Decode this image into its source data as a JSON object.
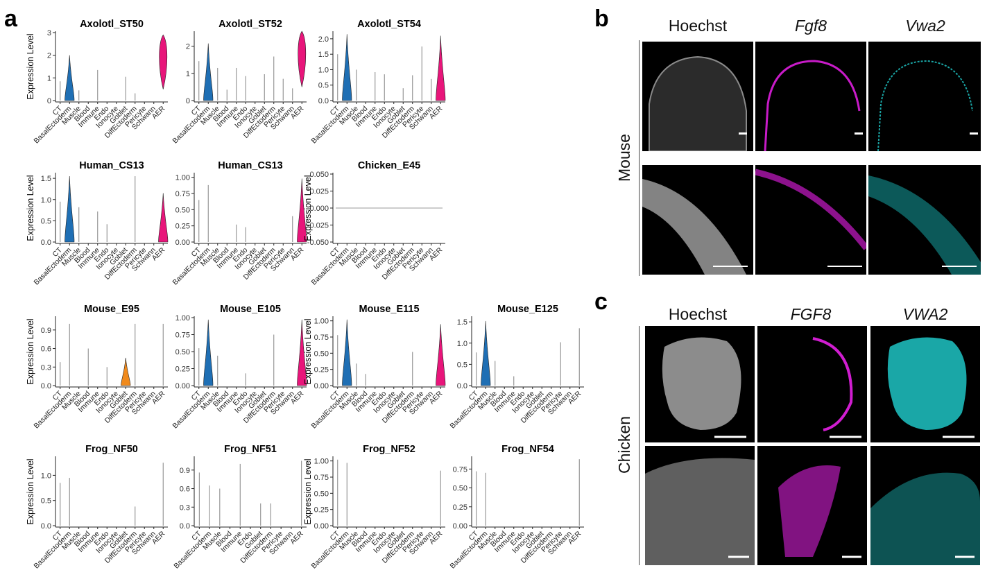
{
  "panel_labels": {
    "a": "a",
    "b": "b",
    "c": "c"
  },
  "colors": {
    "CT": "#ed8b8b",
    "BasalEctoderm": "#1f6fb4",
    "Muscle": "#8e8e8e",
    "Blood": "#8e8e8e",
    "Immune": "#8e8e8e",
    "Endo": "#8e8e8e",
    "Ionocyte": "#8e8e8e",
    "Goblet": "#f08a1c",
    "DiffEctoderm": "#8e8e8e",
    "Pericyte": "#8e8e8e",
    "Schwann": "#8e8e8e",
    "AER": "#e8157a",
    "hoechst": "#d9d9d9",
    "fgf8": "#d81fd8",
    "vwa2": "#16c8c8"
  },
  "chart_data": [
    {
      "type": "violin",
      "title": "Axolotl_ST50",
      "ylabel": "Expression Level",
      "ylim": [
        0,
        3
      ],
      "yticks": [
        0,
        1,
        2,
        3
      ],
      "yticklabels": [
        "0",
        "1",
        "2",
        "3"
      ],
      "categories": [
        "CT",
        "BasalEctoderm",
        "Muscle",
        "Blood",
        "Immune",
        "Endo",
        "Ionocyte",
        "Goblet",
        "DiffEctoderm",
        "Pericyte",
        "Schwann",
        "AER"
      ],
      "max": [
        0.85,
        2.0,
        0.45,
        0,
        1.35,
        0,
        0,
        1.05,
        0.32,
        0,
        0,
        2.9
      ],
      "violin": [
        "BasalEctoderm",
        "AER"
      ],
      "min": {
        "AER": 0.5
      }
    },
    {
      "type": "violin",
      "title": "Axolotl_ST52",
      "ylabel": "",
      "ylim": [
        0,
        2.5
      ],
      "yticks": [
        0,
        1,
        2
      ],
      "yticklabels": [
        "0",
        "1",
        "2"
      ],
      "categories": [
        "CT",
        "BasalEctoderm",
        "Muscle",
        "Blood",
        "Immune",
        "Endo",
        "Ionocyte",
        "Goblet",
        "DiffEctoderm",
        "Pericyte",
        "Schwann",
        "AER"
      ],
      "max": [
        1.45,
        2.1,
        1.2,
        0.4,
        1.2,
        0.9,
        0,
        0.97,
        1.62,
        0.8,
        0.45,
        2.55
      ],
      "violin": [
        "BasalEctoderm",
        "AER"
      ],
      "min": {
        "AER": 0.5
      }
    },
    {
      "type": "violin",
      "title": "Axolotl_ST54",
      "ylabel": "",
      "ylim": [
        0,
        2.2
      ],
      "yticks": [
        0,
        0.5,
        1.0,
        1.5,
        2.0
      ],
      "yticklabels": [
        "0.0",
        "0.5",
        "1.0",
        "1.5",
        "2.0"
      ],
      "categories": [
        "CT",
        "BasalEctoderm",
        "Muscle",
        "Blood",
        "Immune",
        "Endo",
        "Ionocyte",
        "Goblet",
        "DiffEctoderm",
        "Pericyte",
        "Schwann",
        "AER"
      ],
      "max": [
        1.5,
        2.15,
        1.0,
        0,
        0.92,
        0.85,
        0,
        0.4,
        0.82,
        1.75,
        0.7,
        2.1
      ],
      "violin": [
        "BasalEctoderm",
        "AER"
      ],
      "min": {
        "AER": 0.0
      }
    },
    {
      "type": "violin",
      "title": "Human_CS13",
      "ylabel": "Expression Level",
      "ylim": [
        0,
        1.6
      ],
      "yticks": [
        0,
        0.5,
        1.0,
        1.5
      ],
      "yticklabels": [
        "0.0",
        "0.5",
        "1.0",
        "1.5"
      ],
      "categories": [
        "CT",
        "BasalEctoderm",
        "Muscle",
        "Blood",
        "Immune",
        "Endo",
        "Ionocyte",
        "Goblet",
        "DiffEctoderm",
        "Pericyte",
        "Schwann",
        "AER"
      ],
      "max": [
        0.95,
        1.55,
        0.82,
        0,
        0.72,
        0.42,
        0,
        0,
        1.55,
        0,
        0,
        1.15
      ],
      "violin": [
        "BasalEctoderm",
        "AER"
      ],
      "min": {
        "AER": 0.0
      }
    },
    {
      "type": "violin",
      "title": "Human_CS13",
      "ylabel": "",
      "ylim": [
        0,
        1.05
      ],
      "yticks": [
        0,
        0.25,
        0.5,
        0.75,
        1.0
      ],
      "yticklabels": [
        "0.00",
        "0.25",
        "0.50",
        "0.75",
        "1.00"
      ],
      "categories": [
        "CT",
        "BasalEctoderm",
        "Muscle",
        "Blood",
        "Immune",
        "Endo",
        "Ionocyte",
        "Goblet",
        "DiffEctoderm",
        "Pericyte",
        "Schwann",
        "AER"
      ],
      "max": [
        0.65,
        0.88,
        0,
        0,
        0.27,
        0.23,
        0,
        0,
        0,
        0,
        0.4,
        0.98
      ],
      "violin": [
        "AER"
      ],
      "min": {
        "AER": 0.0
      }
    },
    {
      "type": "violin",
      "title": "Chicken_E45",
      "ylabel": "Expression Level",
      "ylim": [
        -0.05,
        0.05
      ],
      "yticks": [
        -0.05,
        -0.025,
        0,
        0.025,
        0.05
      ],
      "yticklabels": [
        "-0.050",
        "-0.025",
        "0.000",
        "0.025",
        "0.050"
      ],
      "categories": [
        "CT",
        "BasalEctoderm",
        "Muscle",
        "Blood",
        "Immune",
        "Endo",
        "Ionocyte",
        "Goblet",
        "DiffEctoderm",
        "Pericyte",
        "Schwann",
        "AER"
      ],
      "max": [
        0,
        0,
        0,
        0,
        0,
        0,
        0,
        0,
        0,
        0,
        0,
        0
      ],
      "violin": [],
      "min": {}
    },
    {
      "type": "violin",
      "title": "Mouse_E95",
      "ylabel": "Expression Level",
      "ylim": [
        0,
        1.1
      ],
      "yticks": [
        0,
        0.3,
        0.6,
        0.9
      ],
      "yticklabels": [
        "0.0",
        "0.3",
        "0.6",
        "0.9"
      ],
      "categories": [
        "CT",
        "BasalEctoderm",
        "Muscle",
        "Blood",
        "Immune",
        "Endo",
        "Ionocyte",
        "Goblet",
        "DiffEctoderm",
        "Pericyte",
        "Schwann",
        "AER"
      ],
      "max": [
        0.38,
        1.0,
        0,
        0.6,
        0,
        0.3,
        0,
        0.45,
        1.0,
        0,
        0,
        1.0
      ],
      "violin": [
        "Goblet"
      ],
      "min": {}
    },
    {
      "type": "violin",
      "title": "Mouse_E105",
      "ylabel": "",
      "ylim": [
        0,
        1.0
      ],
      "yticks": [
        0,
        0.25,
        0.5,
        0.75,
        1.0
      ],
      "yticklabels": [
        "0.00",
        "0.25",
        "0.50",
        "0.75",
        "1.00"
      ],
      "categories": [
        "CT",
        "BasalEctoderm",
        "Muscle",
        "Blood",
        "Immune",
        "Endo",
        "Ionocyte",
        "Goblet",
        "DiffEctoderm",
        "Pericyte",
        "Schwann",
        "AER"
      ],
      "max": [
        0.55,
        0.97,
        0.44,
        0,
        0,
        0.18,
        0,
        0,
        0.75,
        0,
        0,
        0.97
      ],
      "violin": [
        "BasalEctoderm",
        "AER"
      ],
      "min": {
        "AER": 0.0
      }
    },
    {
      "type": "violin",
      "title": "Mouse_E115",
      "ylabel": "Expression Level",
      "ylim": [
        0,
        1.05
      ],
      "yticks": [
        0,
        0.25,
        0.5,
        0.75,
        1.0
      ],
      "yticklabels": [
        "0.00",
        "0.25",
        "0.50",
        "0.75",
        "1.00"
      ],
      "categories": [
        "CT",
        "BasalEctoderm",
        "Muscle",
        "Blood",
        "Immune",
        "Endo",
        "Ionocyte",
        "Goblet",
        "DiffEctoderm",
        "Pericyte",
        "Schwann",
        "AER"
      ],
      "max": [
        0.78,
        1.02,
        0.34,
        0.18,
        0,
        0,
        0,
        0,
        0.52,
        0,
        0,
        0.95
      ],
      "violin": [
        "BasalEctoderm",
        "AER"
      ],
      "min": {
        "AER": 0.0
      }
    },
    {
      "type": "violin",
      "title": "Mouse_E125",
      "ylabel": "",
      "ylim": [
        0,
        1.6
      ],
      "yticks": [
        0,
        0.5,
        1.0,
        1.5
      ],
      "yticklabels": [
        "0.0",
        "0.5",
        "1.0",
        "1.5"
      ],
      "categories": [
        "CT",
        "BasalEctoderm",
        "Muscle",
        "Blood",
        "Immune",
        "Endo",
        "Ionocyte",
        "Goblet",
        "DiffEctoderm",
        "Pericyte",
        "Schwann",
        "AER"
      ],
      "max": [
        0.78,
        1.52,
        0.58,
        0,
        0.22,
        0,
        0,
        0,
        0,
        1.02,
        0,
        1.35
      ],
      "violin": [
        "BasalEctoderm"
      ],
      "min": {}
    },
    {
      "type": "violin",
      "title": "Frog_NF50",
      "ylabel": "Expression Level",
      "ylim": [
        0,
        1.35
      ],
      "yticks": [
        0,
        0.5,
        1.0
      ],
      "yticklabels": [
        "0.0",
        "0.5",
        "1.0"
      ],
      "categories": [
        "CT",
        "BasalEctoderm",
        "Muscle",
        "Blood",
        "Immune",
        "Endo",
        "Ionocyte",
        "Goblet",
        "DiffEctoderm",
        "Pericyte",
        "Schwann",
        "AER"
      ],
      "max": [
        0.85,
        0.95,
        0,
        0,
        0,
        0,
        0,
        0,
        0.38,
        0,
        0,
        1.25
      ],
      "violin": [],
      "min": {}
    },
    {
      "type": "violin",
      "title": "Frog_NF51",
      "ylabel": "",
      "ylim": [
        0,
        1.1
      ],
      "yticks": [
        0,
        0.3,
        0.6,
        0.9
      ],
      "yticklabels": [
        "0.0",
        "0.3",
        "0.6",
        "0.9"
      ],
      "categories": [
        "CT",
        "BasalEctoderm",
        "Muscle",
        "Blood",
        "Immune",
        "Endo",
        "Goblet",
        "DiffEctoderm",
        "Pericyte",
        "Schwann",
        "AER"
      ],
      "max": [
        0.86,
        0.65,
        0.6,
        0,
        1.0,
        0,
        0.36,
        0.36,
        0,
        0,
        1.05
      ],
      "violin": [],
      "min": {}
    },
    {
      "type": "violin",
      "title": "Frog_NF52",
      "ylabel": "Expression Level",
      "ylim": [
        0,
        1.05
      ],
      "yticks": [
        0,
        0.25,
        0.5,
        0.75,
        1.0
      ],
      "yticklabels": [
        "0.00",
        "0.25",
        "0.50",
        "0.75",
        "1.00"
      ],
      "categories": [
        "CT",
        "BasalEctoderm",
        "Muscle",
        "Blood",
        "Immune",
        "Endo",
        "Ionocyte",
        "Goblet",
        "DiffEctoderm",
        "Pericyte",
        "Schwann",
        "AER"
      ],
      "max": [
        1.02,
        0.97,
        0,
        0,
        0,
        0,
        0,
        0,
        0,
        0,
        0,
        0.85
      ],
      "violin": [],
      "min": {}
    },
    {
      "type": "violin",
      "title": "Frog_NF54",
      "ylabel": "",
      "ylim": [
        0,
        0.9
      ],
      "yticks": [
        0,
        0.25,
        0.5,
        0.75
      ],
      "yticklabels": [
        "0.00",
        "0.25",
        "0.50",
        "0.75"
      ],
      "categories": [
        "CT",
        "BasalEctoderm",
        "Muscle",
        "Blood",
        "Immune",
        "Endo",
        "Ionocyte",
        "Goblet",
        "DiffEctoderm",
        "Pericyte",
        "Schwann",
        "AER"
      ],
      "max": [
        0.72,
        0.7,
        0,
        0,
        0,
        0,
        0,
        0,
        0,
        0,
        0,
        0.88
      ],
      "violin": [],
      "min": {}
    }
  ],
  "panel_b": {
    "columns": [
      "Hoechst",
      "Fgf8",
      "Vwa2"
    ],
    "row_label": "Mouse"
  },
  "panel_c": {
    "columns": [
      "Hoechst",
      "FGF8",
      "VWA2"
    ],
    "row_label": "Chicken"
  }
}
